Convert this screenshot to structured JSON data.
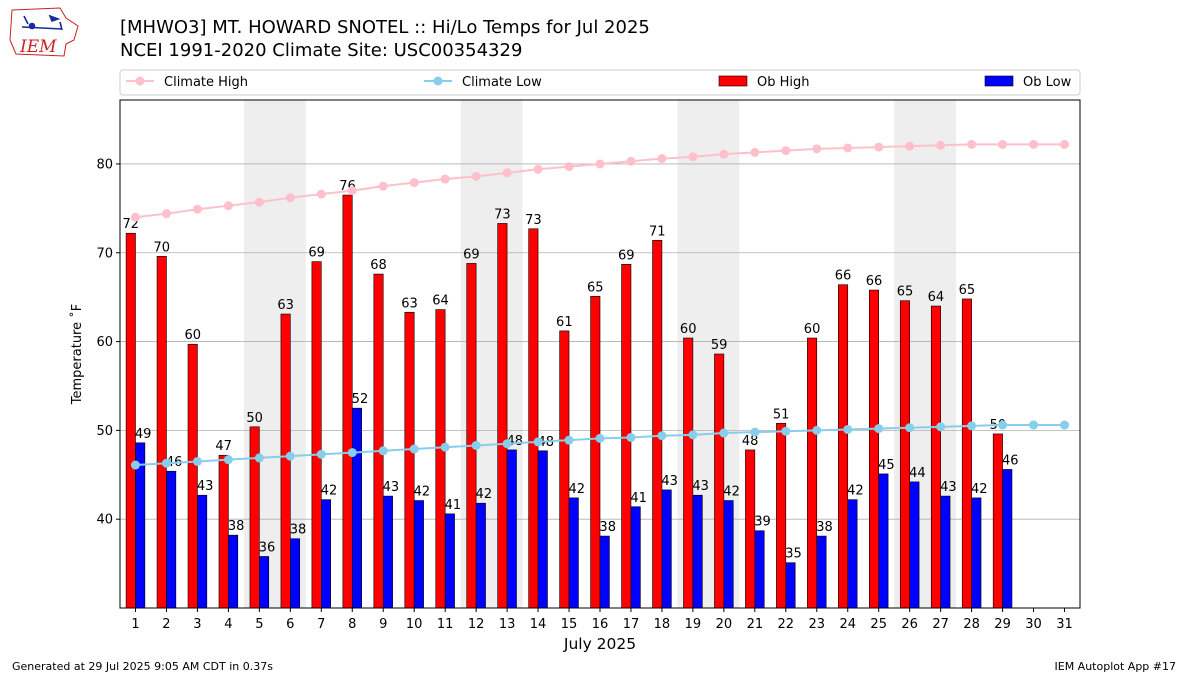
{
  "header": {
    "title_line1": "[MHWO3] MT. HOWARD SNOTEL :: Hi/Lo Temps for Jul 2025",
    "title_line2": "NCEI 1991-2020 Climate Site: USC00354329",
    "logo_text": "IEM"
  },
  "footer": {
    "left": "Generated at 29 Jul 2025 9:05 AM CDT in 0.37s",
    "right": "IEM Autoplot App #17"
  },
  "colors": {
    "ob_high": "#ff0000",
    "ob_low": "#0000ff",
    "climate_high": "#ffc0cb",
    "climate_low": "#87ceeb",
    "weekend_shade": "#eeeeee",
    "grid": "#b0b0b0"
  },
  "chart_data": {
    "type": "bar",
    "xlabel": "July 2025",
    "ylabel": "Temperature ˚F",
    "ylim": [
      30,
      87.2
    ],
    "yticks": [
      40,
      50,
      60,
      70,
      80
    ],
    "categories": [
      "1",
      "2",
      "3",
      "4",
      "5",
      "6",
      "7",
      "8",
      "9",
      "10",
      "11",
      "12",
      "13",
      "14",
      "15",
      "16",
      "17",
      "18",
      "19",
      "20",
      "21",
      "22",
      "23",
      "24",
      "25",
      "26",
      "27",
      "28",
      "29",
      "30",
      "31"
    ],
    "weekend_shading": [
      [
        5,
        6
      ],
      [
        12,
        13
      ],
      [
        19,
        20
      ],
      [
        26,
        27
      ]
    ],
    "grid": "horizontal",
    "legend_position": "top",
    "series": [
      {
        "name": "Climate High",
        "kind": "line",
        "values": [
          74.0,
          74.4,
          74.9,
          75.3,
          75.7,
          76.2,
          76.6,
          77.0,
          77.5,
          77.9,
          78.3,
          78.6,
          79.0,
          79.4,
          79.7,
          80.0,
          80.3,
          80.6,
          80.8,
          81.1,
          81.3,
          81.5,
          81.7,
          81.8,
          81.9,
          82.0,
          82.1,
          82.2,
          82.2,
          82.2,
          82.2
        ]
      },
      {
        "name": "Climate Low",
        "kind": "line",
        "values": [
          46.1,
          46.3,
          46.5,
          46.7,
          46.9,
          47.1,
          47.3,
          47.5,
          47.7,
          47.9,
          48.1,
          48.3,
          48.5,
          48.7,
          48.9,
          49.1,
          49.2,
          49.4,
          49.5,
          49.7,
          49.8,
          49.9,
          50.0,
          50.1,
          50.2,
          50.3,
          50.4,
          50.5,
          50.6,
          50.6,
          50.6
        ]
      },
      {
        "name": "Ob High",
        "kind": "bar",
        "values": [
          72,
          70,
          60,
          47,
          50,
          63,
          69,
          76,
          68,
          63,
          64,
          69,
          73,
          73,
          61,
          65,
          69,
          71,
          60,
          59,
          48,
          51,
          60,
          66,
          66,
          65,
          64,
          65,
          50,
          null,
          null
        ],
        "bar_tops": [
          72.2,
          69.6,
          59.7,
          47.2,
          50.4,
          63.1,
          69.0,
          76.5,
          67.6,
          63.3,
          63.6,
          68.8,
          73.3,
          72.7,
          61.2,
          65.1,
          68.7,
          71.4,
          60.4,
          58.6,
          47.8,
          50.8,
          60.4,
          66.4,
          65.8,
          64.6,
          64.0,
          64.8,
          49.6,
          null,
          null
        ]
      },
      {
        "name": "Ob Low",
        "kind": "bar",
        "values": [
          49,
          46,
          43,
          38,
          36,
          38,
          42,
          52,
          43,
          42,
          41,
          42,
          48,
          48,
          42,
          38,
          41,
          43,
          43,
          42,
          39,
          35,
          38,
          42,
          45,
          44,
          43,
          42,
          46,
          null,
          null
        ],
        "bar_tops": [
          48.6,
          45.4,
          42.7,
          38.2,
          35.8,
          37.8,
          42.2,
          52.5,
          42.6,
          42.1,
          40.6,
          41.8,
          47.8,
          47.7,
          42.4,
          38.1,
          41.4,
          43.3,
          42.7,
          42.1,
          38.7,
          35.1,
          38.1,
          42.2,
          45.1,
          44.2,
          42.6,
          42.4,
          45.6,
          null,
          null
        ]
      }
    ]
  }
}
